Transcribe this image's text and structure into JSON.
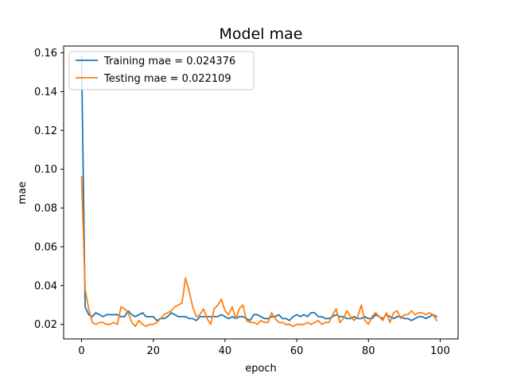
{
  "chart_data": {
    "type": "line",
    "title": "Model mae",
    "xlabel": "epoch",
    "ylabel": "mae",
    "xlim": [
      -5,
      105
    ],
    "ylim": [
      0.0125,
      0.1635
    ],
    "xticks": [
      0,
      20,
      40,
      60,
      80,
      100
    ],
    "yticks": [
      0.02,
      0.04,
      0.06,
      0.08,
      0.1,
      0.12,
      0.14,
      0.16
    ],
    "ytick_labels": [
      "0.02",
      "0.04",
      "0.06",
      "0.08",
      "0.10",
      "0.12",
      "0.14",
      "0.16"
    ],
    "grid": false,
    "legend_position": "top-left",
    "series": [
      {
        "name": "Training mae = 0.024376",
        "color": "#1f77b4",
        "values": [
          0.158,
          0.029,
          0.025,
          0.024,
          0.026,
          0.025,
          0.024,
          0.025,
          0.025,
          0.025,
          0.025,
          0.024,
          0.024,
          0.027,
          0.025,
          0.024,
          0.025,
          0.026,
          0.024,
          0.024,
          0.024,
          0.022,
          0.023,
          0.023,
          0.024,
          0.026,
          0.025,
          0.024,
          0.024,
          0.024,
          0.023,
          0.023,
          0.022,
          0.024,
          0.024,
          0.024,
          0.024,
          0.024,
          0.024,
          0.025,
          0.024,
          0.023,
          0.024,
          0.023,
          0.024,
          0.024,
          0.023,
          0.022,
          0.025,
          0.025,
          0.024,
          0.023,
          0.023,
          0.024,
          0.024,
          0.025,
          0.023,
          0.023,
          0.022,
          0.024,
          0.025,
          0.024,
          0.025,
          0.024,
          0.026,
          0.026,
          0.024,
          0.024,
          0.023,
          0.023,
          0.024,
          0.025,
          0.024,
          0.024,
          0.023,
          0.023,
          0.024,
          0.023,
          0.023,
          0.024,
          0.023,
          0.023,
          0.025,
          0.024,
          0.023,
          0.025,
          0.024,
          0.023,
          0.024,
          0.024,
          0.023,
          0.023,
          0.022,
          0.023,
          0.024,
          0.024,
          0.023,
          0.024,
          0.025,
          0.024
        ]
      },
      {
        "name": "Testing mae = 0.022109",
        "color": "#ff7f0e",
        "values": [
          0.096,
          0.038,
          0.028,
          0.021,
          0.02,
          0.021,
          0.021,
          0.02,
          0.02,
          0.021,
          0.02,
          0.029,
          0.028,
          0.026,
          0.021,
          0.019,
          0.022,
          0.02,
          0.019,
          0.02,
          0.02,
          0.021,
          0.023,
          0.025,
          0.026,
          0.027,
          0.029,
          0.03,
          0.031,
          0.044,
          0.037,
          0.029,
          0.024,
          0.025,
          0.028,
          0.023,
          0.02,
          0.028,
          0.03,
          0.033,
          0.027,
          0.025,
          0.029,
          0.023,
          0.028,
          0.03,
          0.022,
          0.021,
          0.021,
          0.02,
          0.022,
          0.021,
          0.021,
          0.026,
          0.023,
          0.021,
          0.021,
          0.02,
          0.02,
          0.019,
          0.02,
          0.02,
          0.02,
          0.021,
          0.02,
          0.021,
          0.022,
          0.02,
          0.021,
          0.021,
          0.025,
          0.028,
          0.021,
          0.023,
          0.027,
          0.024,
          0.022,
          0.024,
          0.03,
          0.022,
          0.02,
          0.024,
          0.026,
          0.024,
          0.022,
          0.026,
          0.021,
          0.026,
          0.027,
          0.023,
          0.025,
          0.025,
          0.027,
          0.025,
          0.026,
          0.026,
          0.025,
          0.026,
          0.025,
          0.022
        ]
      }
    ]
  }
}
